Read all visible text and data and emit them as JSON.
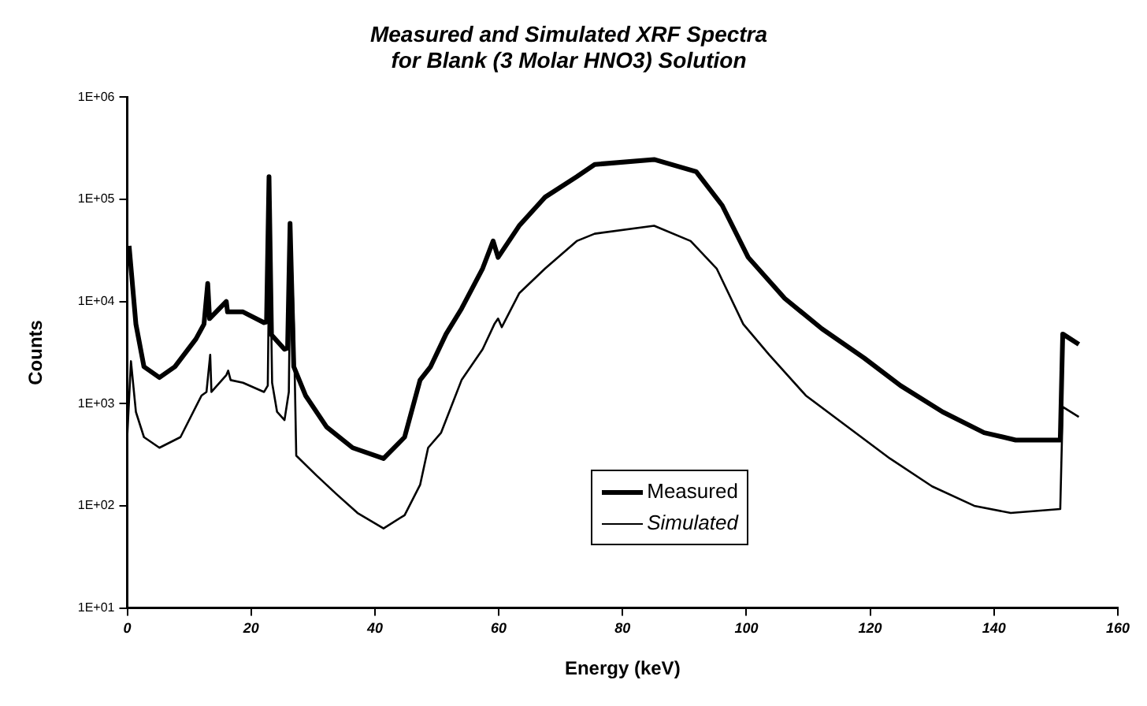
{
  "chart_data": {
    "type": "line",
    "title": "Measured and Simulated XRF Spectra\nfor Blank (3 Molar HNO3) Solution",
    "xlabel": "Energy (keV)",
    "ylabel": "Counts",
    "xlim": [
      0,
      160
    ],
    "xticks": [
      0,
      20,
      40,
      60,
      80,
      100,
      120,
      140,
      160
    ],
    "ylim": [
      10,
      1000000
    ],
    "yticks": [
      {
        "value": 10,
        "label": "1E+01"
      },
      {
        "value": 100,
        "label": "1E+02"
      },
      {
        "value": 1000,
        "label": "1E+03"
      },
      {
        "value": 10000,
        "label": "1E+04"
      },
      {
        "value": 100000,
        "label": "1E+05"
      },
      {
        "value": 1000000,
        "label": "1E+06"
      }
    ],
    "log": "y",
    "grid": false,
    "legend": "bottom",
    "marker": "none",
    "line_style": "solid",
    "series": [
      {
        "name": "Measured",
        "color": "#000000",
        "x": [
          0.3,
          1.4,
          2.7,
          5.2,
          7.7,
          11.1,
          12.4,
          13.0,
          13.3,
          16.0,
          16.2,
          18.7,
          22.1,
          22.5,
          22.9,
          23.3,
          25.4,
          25.9,
          26.3,
          26.9,
          28.8,
          32.2,
          36.4,
          41.4,
          44.8,
          47.3,
          49.0,
          51.5,
          54.0,
          57.4,
          59.1,
          59.9,
          63.3,
          67.5,
          72.6,
          75.5,
          85.1,
          91.9,
          96.1,
          100.3,
          106.2,
          112.2,
          119,
          124.9,
          131.7,
          138.4,
          143.5,
          150.7,
          151.1,
          153.7
        ],
        "values": [
          35000,
          6000,
          2300,
          1800,
          2300,
          4300,
          6000,
          15000,
          6800,
          10000,
          7900,
          7900,
          6200,
          6300,
          166000,
          4700,
          3400,
          3500,
          58000,
          2300,
          1200,
          590,
          370,
          290,
          470,
          1700,
          2300,
          4800,
          8500,
          21000,
          39000,
          27000,
          55000,
          105000,
          166000,
          219000,
          245000,
          186000,
          87000,
          27000,
          10700,
          5400,
          2800,
          1500,
          830,
          520,
          440,
          440,
          4800,
          3800
        ]
      },
      {
        "name": "Simulated",
        "color": "#000000",
        "x": [
          0,
          0.6,
          1.4,
          2.7,
          5.2,
          8.6,
          12,
          12.8,
          13.4,
          13.6,
          16,
          16.3,
          16.7,
          18.7,
          22.1,
          22.7,
          23.0,
          23.4,
          24.2,
          25.4,
          26.1,
          26.4,
          26.9,
          27.3,
          30.5,
          33.8,
          37.2,
          41.4,
          44.8,
          47.3,
          48.6,
          50.7,
          54,
          57.4,
          59.3,
          59.9,
          60.5,
          63.3,
          67.5,
          72.6,
          75.5,
          85.1,
          91,
          95.2,
          99.5,
          103.7,
          109.6,
          116.4,
          123.2,
          130,
          136.8,
          142.7,
          150.7,
          151.1,
          153.7
        ],
        "values": [
          470,
          2600,
          830,
          470,
          370,
          470,
          1200,
          1300,
          3000,
          1300,
          1900,
          2100,
          1700,
          1600,
          1300,
          1500,
          63000,
          1600,
          830,
          690,
          1300,
          50000,
          6000,
          310,
          200,
          130,
          85,
          60,
          81,
          160,
          370,
          520,
          1700,
          3400,
          6000,
          6800,
          5600,
          12000,
          21000,
          39000,
          46000,
          55000,
          39000,
          21000,
          6000,
          3000,
          1200,
          590,
          290,
          155,
          100,
          85,
          93,
          930,
          740
        ]
      }
    ]
  }
}
